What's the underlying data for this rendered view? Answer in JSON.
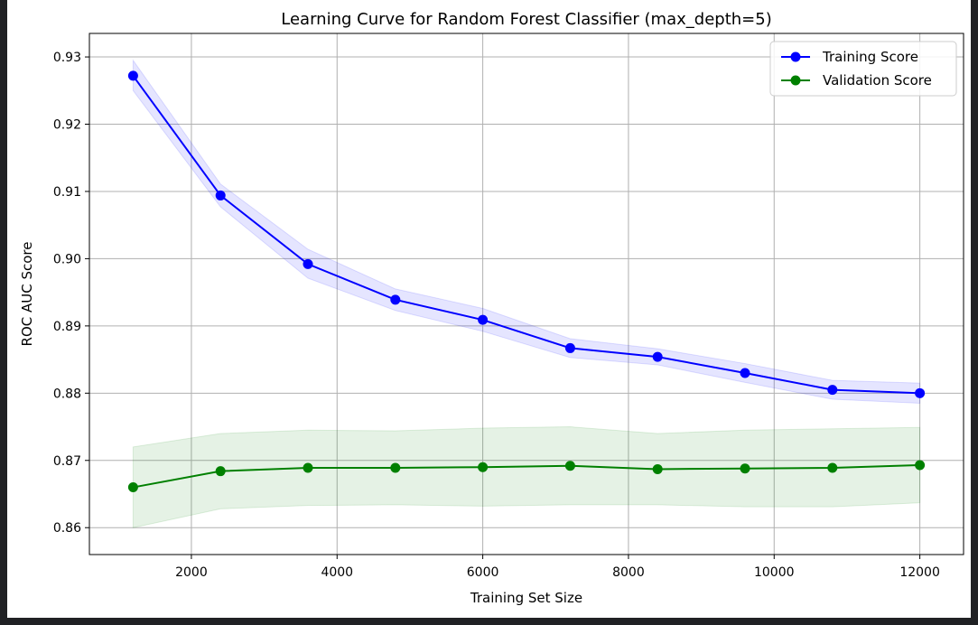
{
  "chart_data": {
    "type": "line",
    "title": "Learning Curve for Random Forest Classifier (max_depth=5)",
    "xlabel": "Training Set Size",
    "ylabel": "ROC AUC Score",
    "xlim": [
      600,
      12600
    ],
    "ylim": [
      0.856,
      0.9335
    ],
    "xticks": [
      2000,
      4000,
      6000,
      8000,
      10000,
      12000
    ],
    "xtick_labels": [
      "2000",
      "4000",
      "6000",
      "8000",
      "10000",
      "12000"
    ],
    "yticks": [
      0.86,
      0.87,
      0.88,
      0.89,
      0.9,
      0.91,
      0.92,
      0.93
    ],
    "ytick_labels": [
      "0.86",
      "0.87",
      "0.88",
      "0.89",
      "0.90",
      "0.91",
      "0.92",
      "0.93"
    ],
    "grid": true,
    "legend_position": "top-right",
    "x": [
      1200,
      2400,
      3600,
      4800,
      6000,
      7200,
      8400,
      9600,
      10800,
      12000
    ],
    "series": [
      {
        "name": "Training Score",
        "color": "#0000ff",
        "band_color": "#0000ff",
        "values": [
          0.9272,
          0.9094,
          0.8992,
          0.8939,
          0.8909,
          0.8867,
          0.8854,
          0.883,
          0.8805,
          0.88
        ],
        "lower": [
          0.925,
          0.9077,
          0.8971,
          0.8923,
          0.8892,
          0.8853,
          0.8842,
          0.8816,
          0.8791,
          0.8785
        ],
        "upper": [
          0.9295,
          0.9111,
          0.9014,
          0.8955,
          0.8926,
          0.8881,
          0.8866,
          0.8844,
          0.8819,
          0.8815
        ]
      },
      {
        "name": "Validation Score",
        "color": "#008000",
        "band_color": "#008000",
        "values": [
          0.866,
          0.8684,
          0.8689,
          0.8689,
          0.869,
          0.8692,
          0.8687,
          0.8688,
          0.8689,
          0.8693
        ],
        "lower": [
          0.86,
          0.8628,
          0.8633,
          0.8634,
          0.8632,
          0.8634,
          0.8634,
          0.8631,
          0.8631,
          0.8637
        ],
        "upper": [
          0.872,
          0.874,
          0.8745,
          0.8744,
          0.8748,
          0.875,
          0.874,
          0.8745,
          0.8747,
          0.8749
        ]
      }
    ]
  }
}
